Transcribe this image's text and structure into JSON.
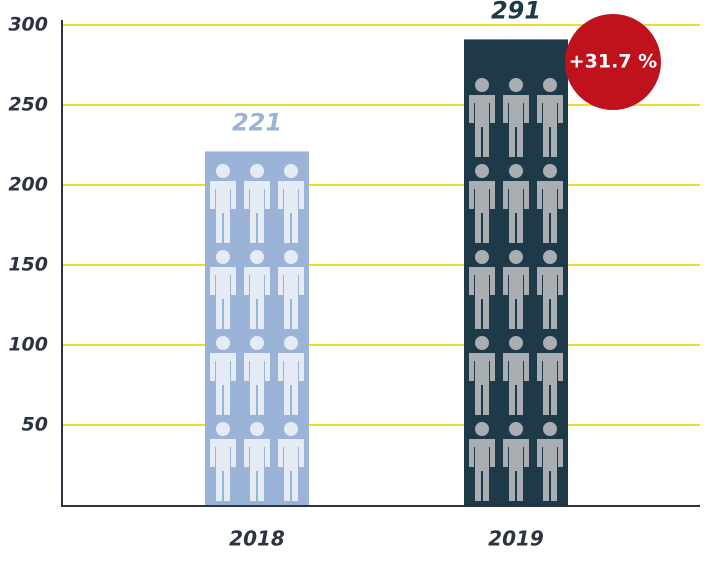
{
  "chart_data": {
    "type": "bar",
    "categories": [
      "2018",
      "2019"
    ],
    "values": [
      221,
      291
    ],
    "colors": [
      "#9cb3d8",
      "#1e3a48"
    ],
    "value_label_colors": [
      "#9cb3d8",
      "#1e3a48"
    ],
    "icon_colors": [
      "#e4ebf5",
      "#a9aeb3"
    ],
    "ylim": [
      0,
      300
    ],
    "yticks": [
      50,
      100,
      150,
      200,
      250,
      300
    ],
    "grid": true,
    "grid_color": "#f0dc2a",
    "annotation": "+31.7 %",
    "annotation_color": "#c0121c"
  }
}
